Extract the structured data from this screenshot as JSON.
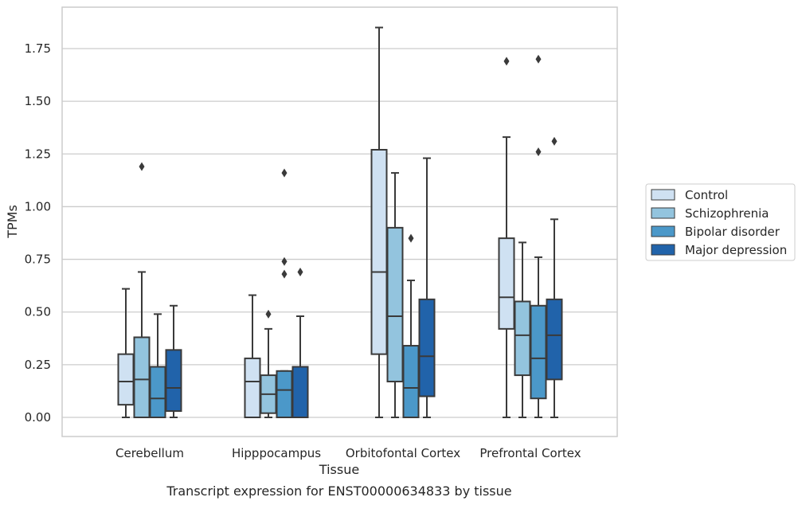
{
  "chart_data": {
    "type": "boxplot",
    "title": "",
    "caption": "Transcript expression for ENST00000634833 by tissue",
    "xlabel": "Tissue",
    "ylabel": "TPMs",
    "ylim": [
      -0.09,
      1.94
    ],
    "yticks": [
      "0.00",
      "0.25",
      "0.50",
      "0.75",
      "1.00",
      "1.25",
      "1.50",
      "1.75"
    ],
    "ytick_values": [
      0,
      0.25,
      0.5,
      0.75,
      1.0,
      1.25,
      1.5,
      1.75
    ],
    "grid": "horizontal",
    "legend_position": "right",
    "categories": [
      "Cerebellum",
      "Hipppocampus",
      "Orbitofontal Cortex",
      "Prefrontal Cortex"
    ],
    "series": [
      {
        "name": "Control",
        "color": "#cfe1f2",
        "boxes": [
          {
            "min": 0.0,
            "q1": 0.06,
            "median": 0.17,
            "q3": 0.3,
            "max": 0.61,
            "outliers": []
          },
          {
            "min": 0.0,
            "q1": 0.0,
            "median": 0.17,
            "q3": 0.28,
            "max": 0.58,
            "outliers": []
          },
          {
            "min": 0.0,
            "q1": 0.3,
            "median": 0.69,
            "q3": 1.27,
            "max": 1.85,
            "outliers": []
          },
          {
            "min": 0.0,
            "q1": 0.42,
            "median": 0.57,
            "q3": 0.85,
            "max": 1.33,
            "outliers": [
              1.69
            ]
          }
        ]
      },
      {
        "name": "Schizophrenia",
        "color": "#93c4de",
        "boxes": [
          {
            "min": 0.0,
            "q1": 0.0,
            "median": 0.18,
            "q3": 0.38,
            "max": 0.69,
            "outliers": [
              1.19
            ]
          },
          {
            "min": 0.0,
            "q1": 0.02,
            "median": 0.11,
            "q3": 0.2,
            "max": 0.42,
            "outliers": [
              0.49
            ]
          },
          {
            "min": 0.0,
            "q1": 0.17,
            "median": 0.48,
            "q3": 0.9,
            "max": 1.16,
            "outliers": []
          },
          {
            "min": 0.0,
            "q1": 0.2,
            "median": 0.39,
            "q3": 0.55,
            "max": 0.83,
            "outliers": []
          }
        ]
      },
      {
        "name": "Bipolar disorder",
        "color": "#4b98c9",
        "boxes": [
          {
            "min": 0.0,
            "q1": 0.0,
            "median": 0.09,
            "q3": 0.24,
            "max": 0.49,
            "outliers": []
          },
          {
            "min": 0.0,
            "q1": 0.0,
            "median": 0.13,
            "q3": 0.22,
            "max": 0.22,
            "outliers": [
              0.68,
              0.74,
              1.16
            ]
          },
          {
            "min": 0.0,
            "q1": 0.0,
            "median": 0.14,
            "q3": 0.34,
            "max": 0.65,
            "outliers": [
              0.85
            ]
          },
          {
            "min": 0.0,
            "q1": 0.09,
            "median": 0.28,
            "q3": 0.53,
            "max": 0.76,
            "outliers": [
              1.26,
              1.7
            ]
          }
        ]
      },
      {
        "name": "Major depression",
        "color": "#2163aa",
        "boxes": [
          {
            "min": 0.0,
            "q1": 0.03,
            "median": 0.14,
            "q3": 0.32,
            "max": 0.53,
            "outliers": []
          },
          {
            "min": 0.0,
            "q1": 0.0,
            "median": 0.0,
            "q3": 0.24,
            "max": 0.48,
            "outliers": [
              0.69
            ]
          },
          {
            "min": 0.0,
            "q1": 0.1,
            "median": 0.29,
            "q3": 0.56,
            "max": 1.23,
            "outliers": []
          },
          {
            "min": 0.0,
            "q1": 0.18,
            "median": 0.39,
            "q3": 0.56,
            "max": 0.94,
            "outliers": [
              1.31
            ]
          }
        ]
      }
    ]
  }
}
